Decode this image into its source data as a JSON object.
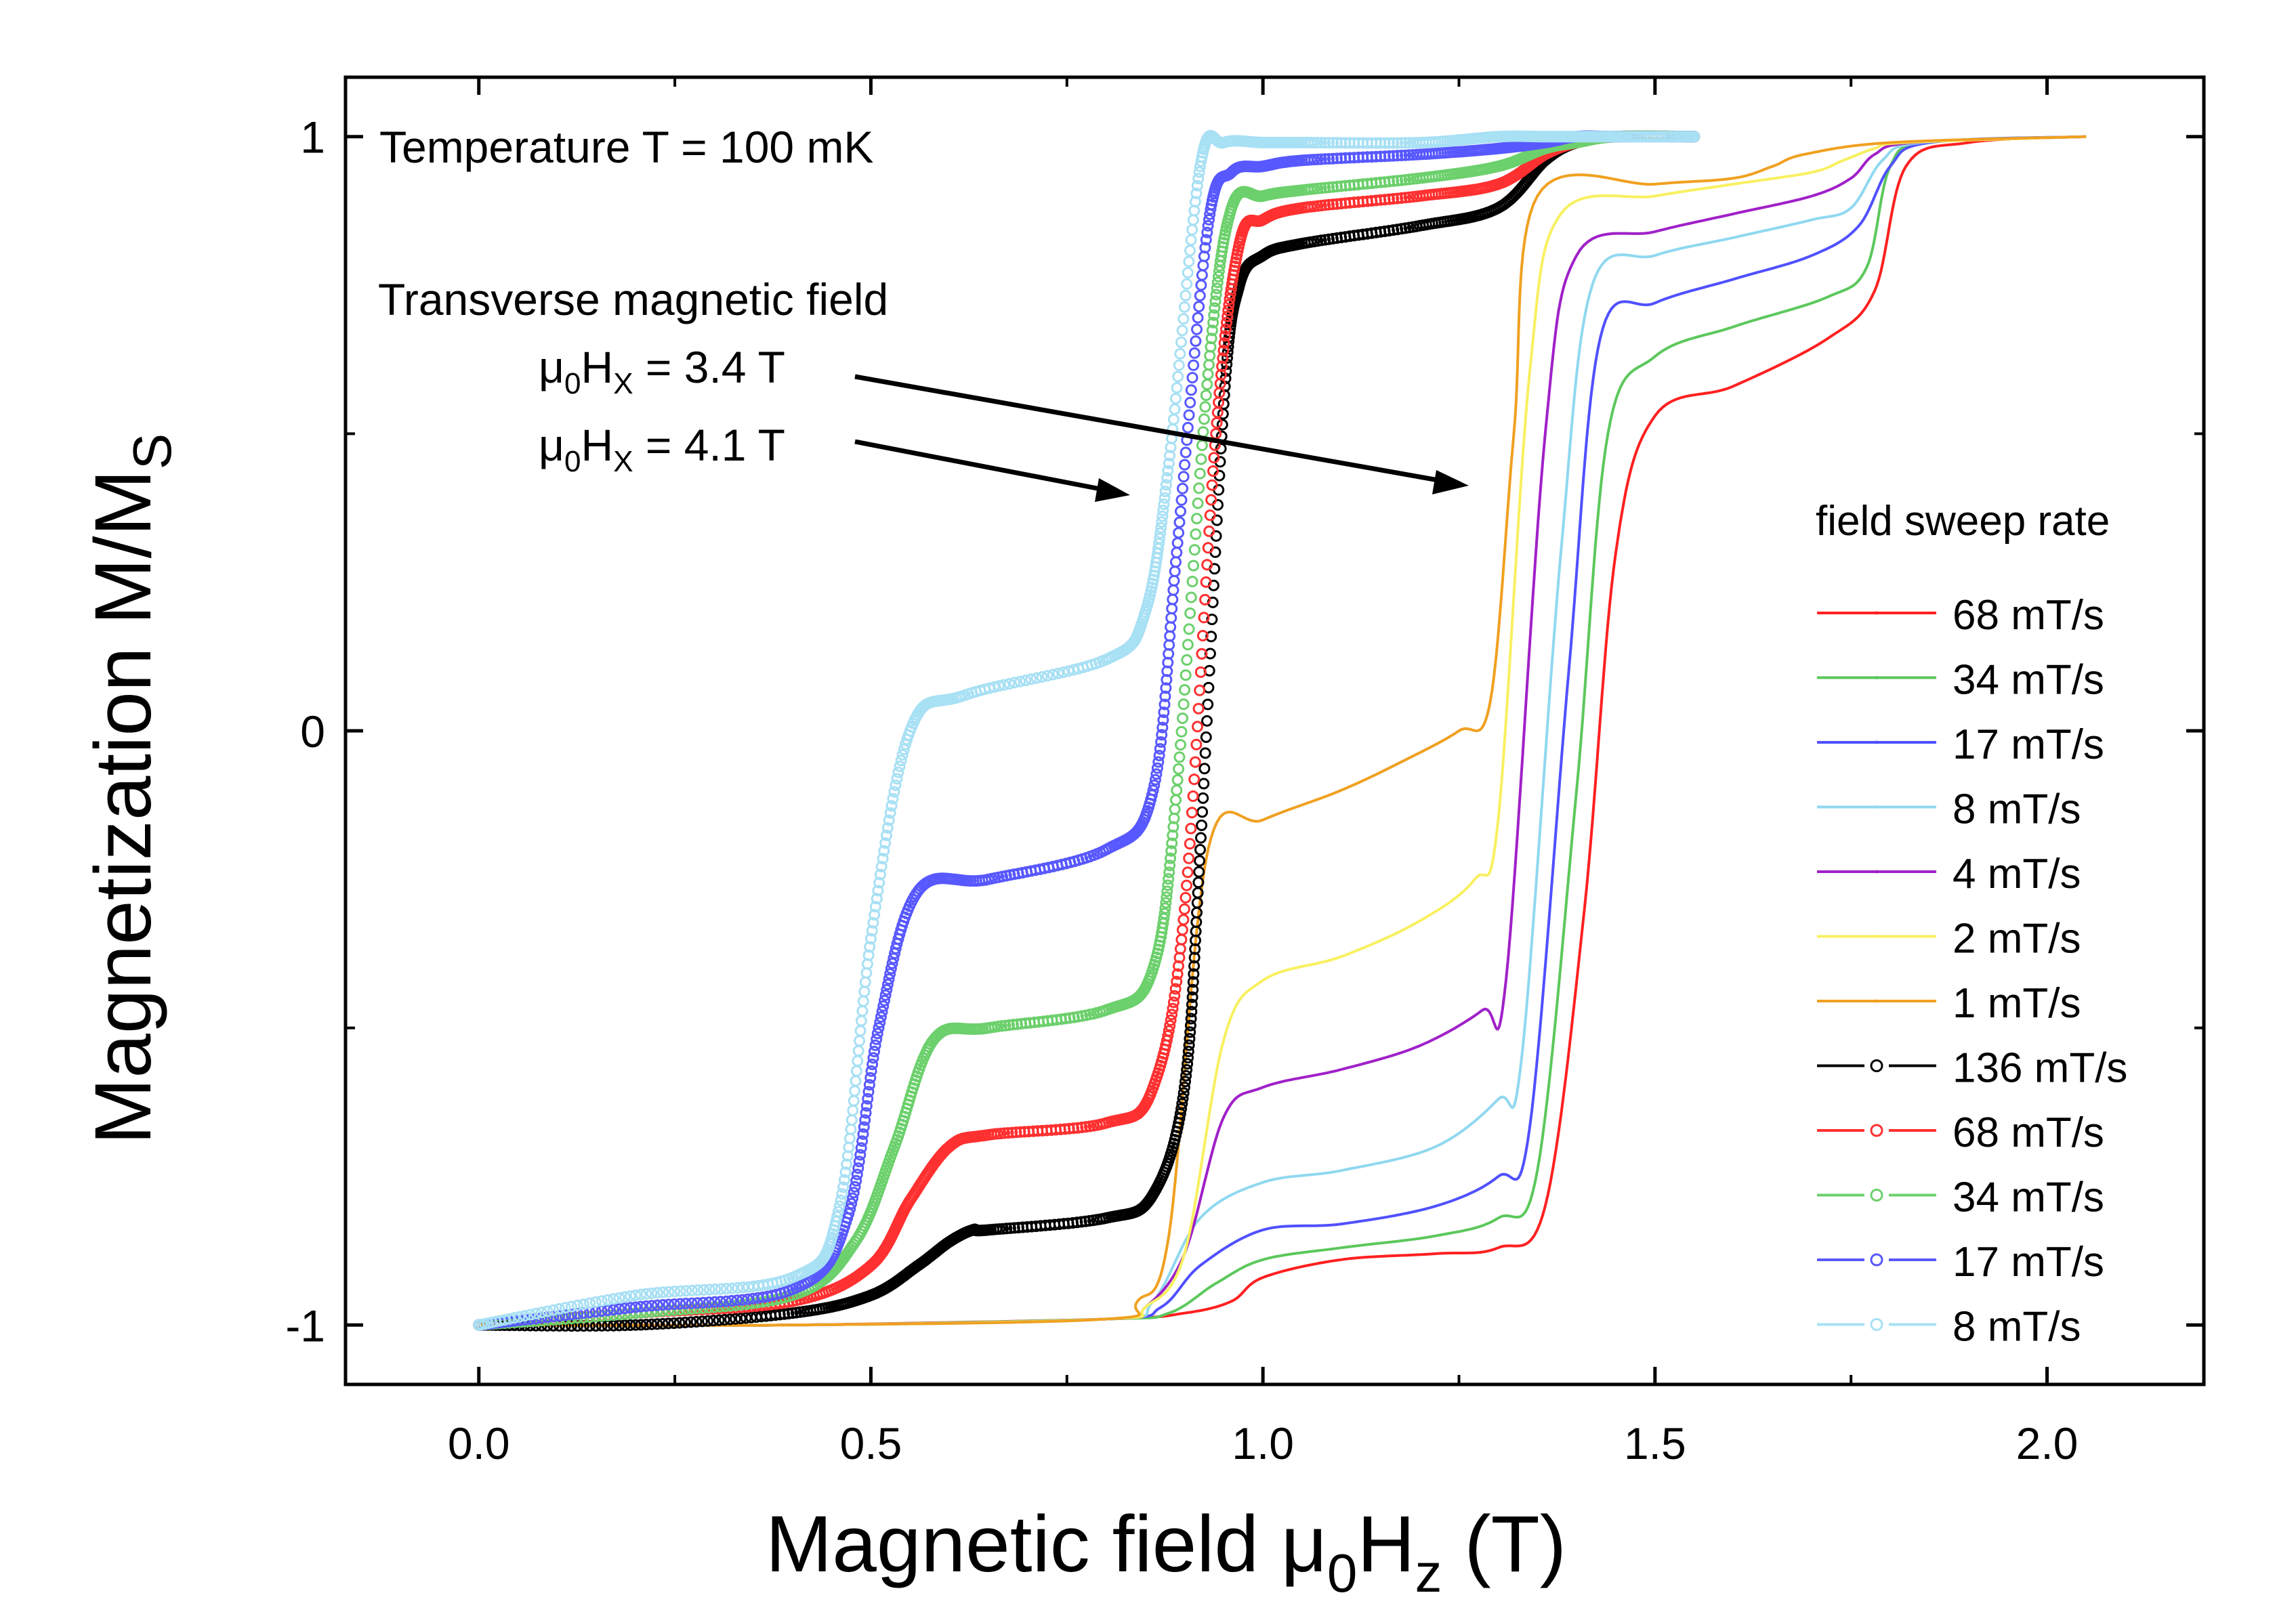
{
  "chart_data": {
    "type": "line",
    "xlabel_main": "Magnetic field μ",
    "xlabel_sub": "0",
    "xlabel_var": "H",
    "xlabel_varsub": "z",
    "xlabel_unit": " (T)",
    "ylabel_main": "Magnetization M/M",
    "ylabel_sub": "S",
    "xlim": [
      -0.17,
      2.2
    ],
    "ylim": [
      -1.1,
      1.1
    ],
    "xticks": [
      0.0,
      0.5,
      1.0,
      1.5,
      2.0
    ],
    "xtick_labels": [
      "0.0",
      "0.5",
      "1.0",
      "1.5",
      "2.0"
    ],
    "yticks": [
      -1,
      0,
      1
    ],
    "ytick_labels": [
      "-1",
      "0",
      "1"
    ],
    "annotations": {
      "temperature": "Temperature T = 100 mK",
      "transverse": "Transverse magnetic field",
      "hx1_prefix": "μ",
      "hx1_sub0": "0",
      "hx1_var": "H",
      "hx1_subx": "X",
      "hx1_value": " = 3.4 T",
      "hx2_prefix": "μ",
      "hx2_sub0": "0",
      "hx2_var": "H",
      "hx2_subx": "X",
      "hx2_value": " = 4.1 T"
    },
    "legend_title": "field sweep rate",
    "legend_position": "right",
    "series": [
      {
        "name": "68 mT/s",
        "group": "4.1 T",
        "style": "line",
        "color": "#ff2020",
        "x": [
          0.0,
          0.2,
          0.4,
          0.8,
          0.9,
          0.96,
          1.0,
          1.1,
          1.22,
          1.3,
          1.36,
          1.41,
          1.45,
          1.5,
          1.6,
          1.72,
          1.78,
          1.82,
          1.9,
          2.05
        ],
        "y": [
          -1.0,
          -1.0,
          -1.0,
          -0.99,
          -0.98,
          -0.96,
          -0.92,
          -0.89,
          -0.88,
          -0.87,
          -0.8,
          -0.3,
          0.3,
          0.53,
          0.58,
          0.66,
          0.74,
          0.95,
          0.99,
          1.0
        ]
      },
      {
        "name": "34 mT/s",
        "group": "4.1 T",
        "style": "line",
        "color": "#5cc85c",
        "x": [
          0.0,
          0.4,
          0.8,
          0.88,
          0.94,
          1.0,
          1.1,
          1.22,
          1.3,
          1.35,
          1.4,
          1.44,
          1.5,
          1.6,
          1.72,
          1.77,
          1.8,
          1.85,
          2.05
        ],
        "y": [
          -1.0,
          -1.0,
          -0.99,
          -0.98,
          -0.93,
          -0.89,
          -0.87,
          -0.85,
          -0.82,
          -0.74,
          -0.1,
          0.5,
          0.63,
          0.68,
          0.73,
          0.78,
          0.95,
          0.99,
          1.0
        ]
      },
      {
        "name": "17 mT/s",
        "group": "4.1 T",
        "style": "line",
        "color": "#5050ff",
        "x": [
          0.0,
          0.4,
          0.8,
          0.87,
          0.92,
          1.0,
          1.1,
          1.22,
          1.3,
          1.34,
          1.39,
          1.43,
          1.5,
          1.6,
          1.7,
          1.76,
          1.8,
          1.85,
          2.05
        ],
        "y": [
          -1.0,
          -1.0,
          -0.99,
          -0.97,
          -0.9,
          -0.84,
          -0.83,
          -0.8,
          -0.75,
          -0.67,
          0.1,
          0.66,
          0.72,
          0.76,
          0.8,
          0.85,
          0.95,
          0.99,
          1.0
        ]
      },
      {
        "name": "8 mT/s",
        "group": "4.1 T",
        "style": "line",
        "color": "#90d8f0",
        "x": [
          0.0,
          0.4,
          0.8,
          0.86,
          0.92,
          1.0,
          1.1,
          1.22,
          1.3,
          1.33,
          1.38,
          1.42,
          1.5,
          1.6,
          1.7,
          1.75,
          1.79,
          1.84,
          2.05
        ],
        "y": [
          -1.0,
          -1.0,
          -0.99,
          -0.96,
          -0.82,
          -0.76,
          -0.74,
          -0.7,
          -0.62,
          -0.55,
          0.3,
          0.75,
          0.8,
          0.83,
          0.86,
          0.88,
          0.96,
          0.99,
          1.0
        ]
      },
      {
        "name": "4 mT/s",
        "group": "4.1 T",
        "style": "line",
        "color": "#a020c8",
        "x": [
          0.0,
          0.4,
          0.8,
          0.85,
          0.9,
          0.95,
          1.0,
          1.1,
          1.2,
          1.28,
          1.31,
          1.36,
          1.4,
          1.5,
          1.6,
          1.7,
          1.75,
          1.78,
          1.83,
          2.05
        ],
        "y": [
          -1.0,
          -1.0,
          -0.99,
          -0.97,
          -0.88,
          -0.65,
          -0.6,
          -0.57,
          -0.53,
          -0.47,
          -0.42,
          0.5,
          0.8,
          0.84,
          0.87,
          0.9,
          0.93,
          0.97,
          0.99,
          1.0
        ]
      },
      {
        "name": "2 mT/s",
        "group": "4.1 T",
        "style": "line",
        "color": "#f8f060",
        "x": [
          0.0,
          0.4,
          0.8,
          0.85,
          0.9,
          0.95,
          1.0,
          1.1,
          1.2,
          1.27,
          1.3,
          1.34,
          1.38,
          1.5,
          1.6,
          1.7,
          1.74,
          1.78,
          1.82,
          2.05
        ],
        "y": [
          -1.0,
          -1.0,
          -0.99,
          -0.97,
          -0.88,
          -0.52,
          -0.42,
          -0.38,
          -0.32,
          -0.25,
          -0.15,
          0.6,
          0.87,
          0.9,
          0.92,
          0.94,
          0.96,
          0.98,
          0.99,
          1.0
        ]
      },
      {
        "name": "1 mT/s",
        "group": "4.1 T",
        "style": "line",
        "color": "#f0a020",
        "x": [
          0.0,
          0.4,
          0.8,
          0.84,
          0.88,
          0.93,
          1.0,
          1.1,
          1.18,
          1.25,
          1.29,
          1.32,
          1.35,
          1.5,
          1.6,
          1.65,
          1.69,
          1.8,
          2.05
        ],
        "y": [
          -1.0,
          -1.0,
          -0.99,
          -0.96,
          -0.85,
          -0.2,
          -0.15,
          -0.1,
          -0.05,
          0.0,
          0.05,
          0.5,
          0.9,
          0.92,
          0.93,
          0.95,
          0.97,
          0.99,
          1.0
        ]
      },
      {
        "name": "136 mT/s",
        "group": "3.4 T",
        "style": "circle",
        "color": "#000000",
        "x": [
          0.0,
          0.2,
          0.4,
          0.5,
          0.56,
          0.6,
          0.63,
          0.65,
          0.8,
          0.86,
          0.9,
          0.92,
          0.95,
          0.97,
          1.0,
          1.05,
          1.2,
          1.3,
          1.36,
          1.4,
          1.45,
          1.55
        ],
        "y": [
          -1.0,
          -1.0,
          -0.98,
          -0.95,
          -0.9,
          -0.86,
          -0.84,
          -0.84,
          -0.82,
          -0.78,
          -0.6,
          -0.2,
          0.55,
          0.75,
          0.8,
          0.82,
          0.85,
          0.88,
          0.96,
          0.99,
          1.0,
          1.0
        ]
      },
      {
        "name": "68 mT/s",
        "group": "3.4 T",
        "style": "circle",
        "color": "#ff3030",
        "x": [
          0.0,
          0.2,
          0.4,
          0.5,
          0.55,
          0.6,
          0.65,
          0.8,
          0.86,
          0.9,
          0.94,
          0.97,
          1.0,
          1.05,
          1.2,
          1.3,
          1.36,
          1.4,
          1.45,
          1.55
        ],
        "y": [
          -1.0,
          -0.98,
          -0.96,
          -0.9,
          -0.79,
          -0.7,
          -0.68,
          -0.66,
          -0.6,
          -0.3,
          0.5,
          0.82,
          0.86,
          0.88,
          0.9,
          0.92,
          0.97,
          0.99,
          1.0,
          1.0
        ]
      },
      {
        "name": "34 mT/s",
        "group": "3.4 T",
        "style": "circle",
        "color": "#6cd06c",
        "x": [
          0.0,
          0.2,
          0.4,
          0.48,
          0.53,
          0.58,
          0.65,
          0.8,
          0.86,
          0.89,
          0.93,
          0.96,
          1.0,
          1.05,
          1.2,
          1.3,
          1.36,
          1.4,
          1.45,
          1.55
        ],
        "y": [
          -1.0,
          -0.98,
          -0.95,
          -0.86,
          -0.7,
          -0.52,
          -0.5,
          -0.47,
          -0.4,
          -0.1,
          0.6,
          0.88,
          0.9,
          0.91,
          0.93,
          0.95,
          0.98,
          0.99,
          1.0,
          1.0
        ]
      },
      {
        "name": "17 mT/s",
        "group": "3.4 T",
        "style": "circle",
        "color": "#5858ff",
        "x": [
          0.0,
          0.2,
          0.4,
          0.47,
          0.51,
          0.56,
          0.65,
          0.8,
          0.86,
          0.89,
          0.93,
          0.96,
          1.0,
          1.05,
          1.2,
          1.3,
          1.36,
          1.4,
          1.45,
          1.55
        ],
        "y": [
          -1.0,
          -0.97,
          -0.94,
          -0.82,
          -0.5,
          -0.27,
          -0.25,
          -0.2,
          -0.1,
          0.3,
          0.85,
          0.94,
          0.95,
          0.96,
          0.97,
          0.98,
          0.99,
          1.0,
          1.0,
          1.0
        ]
      },
      {
        "name": "8 mT/s",
        "group": "3.4 T",
        "style": "circle",
        "color": "#a8e0f4",
        "x": [
          0.0,
          0.2,
          0.4,
          0.46,
          0.5,
          0.55,
          0.62,
          0.8,
          0.85,
          0.88,
          0.92,
          0.95,
          1.0,
          1.05,
          1.2,
          1.3,
          1.36,
          1.4,
          1.45,
          1.55
        ],
        "y": [
          -1.0,
          -0.95,
          -0.92,
          -0.8,
          -0.35,
          0.0,
          0.06,
          0.12,
          0.2,
          0.45,
          0.95,
          0.99,
          0.99,
          0.99,
          0.99,
          1.0,
          1.0,
          1.0,
          1.0,
          1.0
        ]
      }
    ]
  }
}
